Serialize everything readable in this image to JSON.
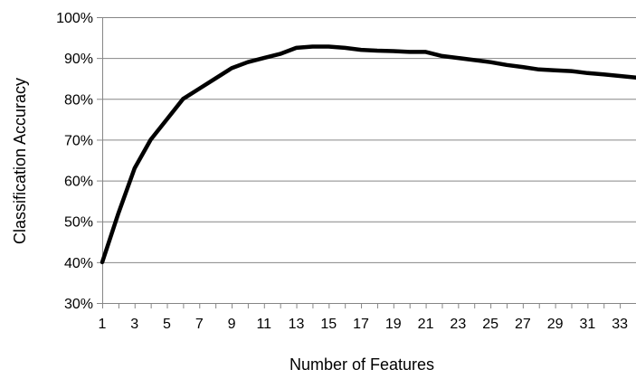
{
  "chart_data": {
    "type": "line",
    "title": "",
    "xlabel": "Number of Features",
    "ylabel": "Classification Accuracy",
    "x": [
      1,
      2,
      3,
      4,
      5,
      6,
      7,
      8,
      9,
      10,
      11,
      12,
      13,
      14,
      15,
      16,
      17,
      18,
      19,
      20,
      21,
      22,
      23,
      24,
      25,
      26,
      27,
      28,
      29,
      30,
      31,
      32,
      33,
      34
    ],
    "series": [
      {
        "values": [
          40.0,
          52.0,
          63.0,
          70.0,
          75.0,
          80.0,
          82.5,
          85.0,
          87.5,
          89.0,
          90.0,
          91.0,
          92.5,
          92.8,
          92.8,
          92.5,
          92.0,
          91.8,
          91.7,
          91.5,
          91.5,
          90.5,
          90.0,
          89.5,
          89.0,
          88.3,
          87.8,
          87.2,
          87.0,
          86.8,
          86.3,
          86.0,
          85.6,
          85.2
        ],
        "color": "#000000"
      }
    ],
    "xticks": [
      1,
      3,
      5,
      7,
      9,
      11,
      13,
      15,
      17,
      19,
      21,
      23,
      25,
      27,
      29,
      31,
      33
    ],
    "xtick_labels": [
      "1",
      "3",
      "5",
      "7",
      "9",
      "11",
      "13",
      "15",
      "17",
      "19",
      "21",
      "23",
      "25",
      "27",
      "29",
      "31",
      "33"
    ],
    "yticks": [
      30,
      40,
      50,
      60,
      70,
      80,
      90,
      100
    ],
    "ytick_labels": [
      "30%",
      "40%",
      "50%",
      "60%",
      "70%",
      "80%",
      "90%",
      "100%"
    ],
    "xlim": [
      1,
      34
    ],
    "ylim": [
      30,
      100
    ],
    "grid": true,
    "gridlines": "horizontal",
    "legend": "none"
  }
}
